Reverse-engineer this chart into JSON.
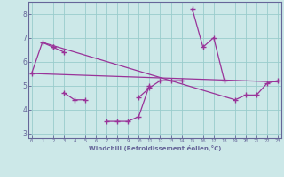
{
  "xlabel": "Windchill (Refroidissement éolien,°C)",
  "background_color": "#cce8e8",
  "grid_color": "#99cccc",
  "line_color": "#993399",
  "spine_color": "#666699",
  "x_values": [
    0,
    1,
    2,
    3,
    4,
    5,
    6,
    7,
    8,
    9,
    10,
    11,
    12,
    13,
    14,
    15,
    16,
    17,
    18,
    19,
    20,
    21,
    22,
    23
  ],
  "line1": [
    5.5,
    6.8,
    6.6,
    null,
    null,
    null,
    null,
    null,
    null,
    null,
    null,
    null,
    null,
    null,
    null,
    8.2,
    6.6,
    7.0,
    5.2,
    null,
    null,
    null,
    null,
    null
  ],
  "line2": [
    null,
    null,
    null,
    4.7,
    4.4,
    4.4,
    null,
    null,
    null,
    null,
    4.5,
    4.9,
    5.2,
    5.2,
    5.2,
    null,
    null,
    null,
    null,
    4.4,
    4.6,
    4.6,
    5.1,
    5.2
  ],
  "line3": [
    null,
    null,
    6.6,
    6.4,
    null,
    null,
    null,
    3.5,
    3.5,
    3.5,
    3.7,
    5.0,
    null,
    null,
    null,
    null,
    null,
    null,
    null,
    null,
    null,
    null,
    null,
    null
  ],
  "line_straight1": [
    [
      0,
      5.5
    ],
    [
      23,
      5.15
    ]
  ],
  "line_straight2": [
    [
      1,
      6.8
    ],
    [
      19,
      4.4
    ]
  ],
  "ylim": [
    2.8,
    8.5
  ],
  "xlim": [
    -0.3,
    23.3
  ],
  "yticks": [
    3,
    4,
    5,
    6,
    7,
    8
  ],
  "xticks": [
    0,
    1,
    2,
    3,
    4,
    5,
    6,
    7,
    8,
    9,
    10,
    11,
    12,
    13,
    14,
    15,
    16,
    17,
    18,
    19,
    20,
    21,
    22,
    23
  ]
}
